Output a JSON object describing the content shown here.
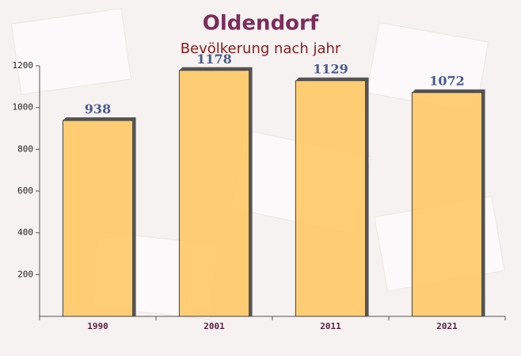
{
  "chart_data": {
    "type": "bar",
    "title": "Oldendorf",
    "subtitle": "Bevölkerung nach jahr",
    "categories": [
      "1990",
      "2001",
      "2011",
      "2021"
    ],
    "values": [
      938,
      1178,
      1129,
      1072
    ],
    "color": "#ffc55c",
    "ylim": [
      0,
      1200
    ],
    "yticks": [
      200,
      400,
      600,
      800,
      1000,
      1200
    ]
  }
}
